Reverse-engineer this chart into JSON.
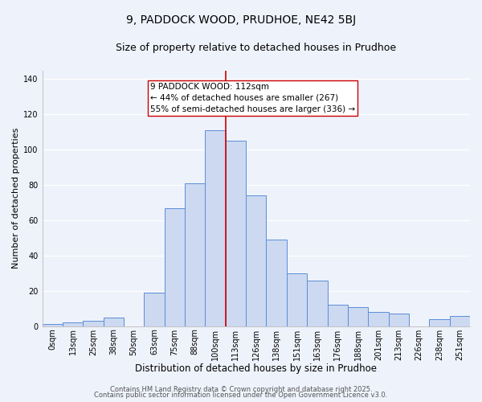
{
  "title": "9, PADDOCK WOOD, PRUDHOE, NE42 5BJ",
  "subtitle": "Size of property relative to detached houses in Prudhoe",
  "xlabel": "Distribution of detached houses by size in Prudhoe",
  "ylabel": "Number of detached properties",
  "bar_labels": [
    "0sqm",
    "13sqm",
    "25sqm",
    "38sqm",
    "50sqm",
    "63sqm",
    "75sqm",
    "88sqm",
    "100sqm",
    "113sqm",
    "126sqm",
    "138sqm",
    "151sqm",
    "163sqm",
    "176sqm",
    "188sqm",
    "201sqm",
    "213sqm",
    "226sqm",
    "238sqm",
    "251sqm"
  ],
  "bar_values": [
    1,
    2,
    3,
    5,
    0,
    19,
    67,
    81,
    111,
    105,
    74,
    49,
    30,
    26,
    12,
    11,
    8,
    7,
    0,
    4,
    6
  ],
  "bar_color": "#ccd9f0",
  "bar_edgecolor": "#5b8dd9",
  "vline_x": 8.5,
  "vline_color": "#cc0000",
  "annotation_text": "9 PADDOCK WOOD: 112sqm\n← 44% of detached houses are smaller (267)\n55% of semi-detached houses are larger (336) →",
  "annotation_box_edgecolor": "#cc0000",
  "annotation_box_facecolor": "#ffffff",
  "ylim": [
    0,
    145
  ],
  "yticks": [
    0,
    20,
    40,
    60,
    80,
    100,
    120,
    140
  ],
  "footer1": "Contains HM Land Registry data © Crown copyright and database right 2025.",
  "footer2": "Contains public sector information licensed under the Open Government Licence v3.0.",
  "background_color": "#eef2fb",
  "grid_color": "#ffffff",
  "title_fontsize": 10,
  "subtitle_fontsize": 9,
  "xlabel_fontsize": 8.5,
  "ylabel_fontsize": 8,
  "tick_fontsize": 7,
  "footer_fontsize": 6,
  "annotation_fontsize": 7.5
}
